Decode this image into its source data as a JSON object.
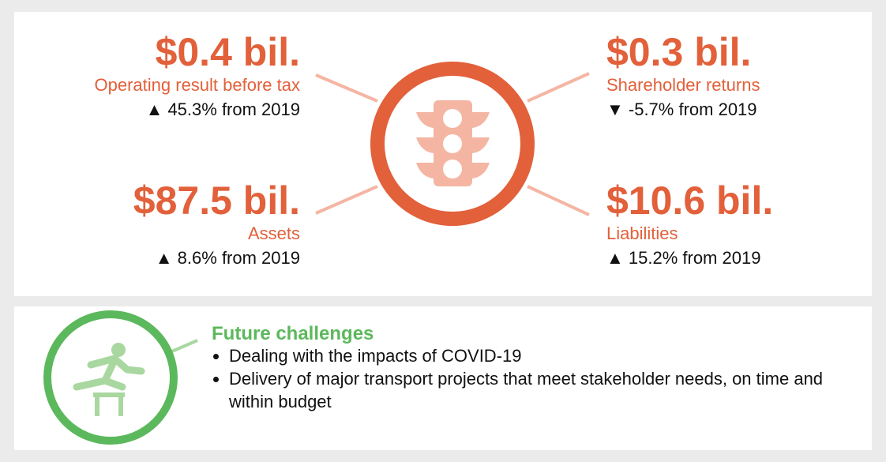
{
  "metrics": [
    {
      "value": "$0.4 bil.",
      "label": "Operating result before tax",
      "change": "▲ 45.3% from 2019"
    },
    {
      "value": "$0.3 bil.",
      "label": "Shareholder returns",
      "change": "▼ -5.7% from 2019"
    },
    {
      "value": "$87.5 bil.",
      "label": "Assets",
      "change": "▲ 8.6% from 2019"
    },
    {
      "value": "$10.6 bil.",
      "label": "Liabilities",
      "change": "▲ 15.2% from 2019"
    }
  ],
  "challenges": {
    "title": "Future challenges",
    "items": [
      "Dealing with the impacts of COVID-19",
      "Delivery of major transport projects that meet stakeholder needs, on time and within budget"
    ]
  }
}
